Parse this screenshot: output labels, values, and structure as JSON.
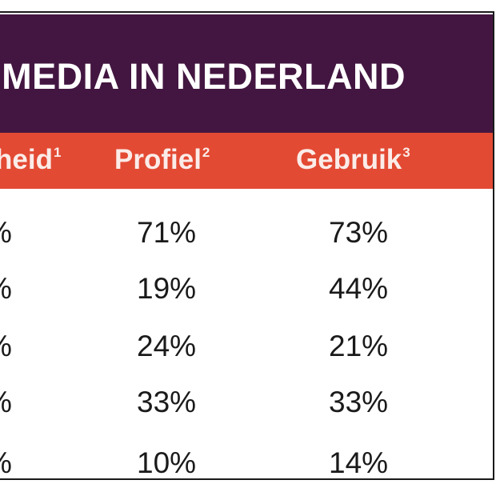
{
  "table": {
    "title": "L MEDIA IN NEDERLAND",
    "headers": [
      {
        "label": "heid",
        "note": "1"
      },
      {
        "label": "Profiel",
        "note": "2"
      },
      {
        "label": "Gebruik",
        "note": "3"
      }
    ],
    "rows": [
      {
        "col1": "%",
        "profiel": "71%",
        "gebruik": "73%"
      },
      {
        "col1": "%",
        "profiel": "19%",
        "gebruik": "44%"
      },
      {
        "col1": "%",
        "profiel": "24%",
        "gebruik": "21%"
      },
      {
        "col1": "%",
        "profiel": "33%",
        "gebruik": "33%"
      },
      {
        "col1": "%",
        "profiel": "10%",
        "gebruik": "14%"
      }
    ]
  },
  "colors": {
    "title_bg": "#431641",
    "header_bg": "#e34a33",
    "text": "#1a1a1a"
  }
}
